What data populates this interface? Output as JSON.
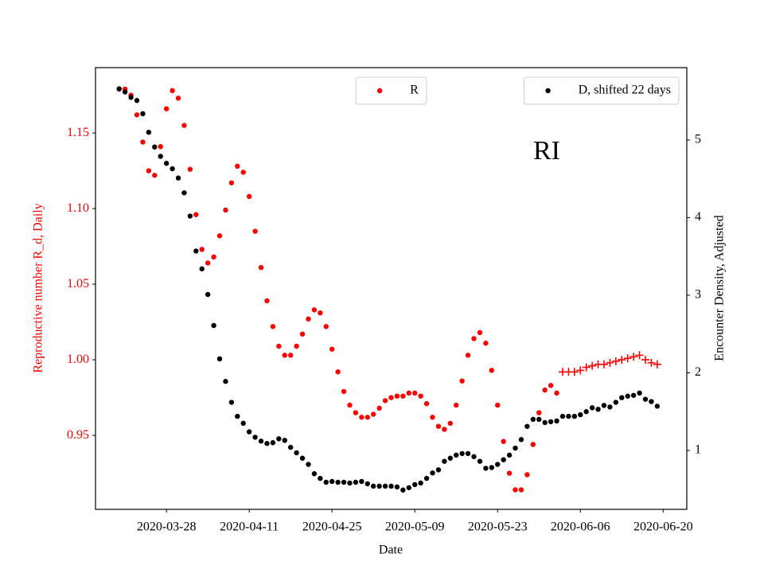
{
  "chart_data": {
    "type": "scatter",
    "annotation": "RI",
    "xlabel": "Date",
    "ylabel": "Reproductive number R_d, Daily",
    "y2label": "Encounter Density, Adjusted",
    "ylabel_color": "#ff0000",
    "xlim": [
      "2020-03-16",
      "2020-06-24"
    ],
    "xticks": [
      "2020-03-28",
      "2020-04-11",
      "2020-04-25",
      "2020-05-09",
      "2020-05-23",
      "2020-06-06",
      "2020-06-20"
    ],
    "ylim": [
      0.9011,
      1.1932
    ],
    "yticks": [
      0.95,
      {
        "value": 1,
        "label": "1.00"
      },
      1.05,
      {
        "value": 1.1,
        "label": "1.10"
      },
      1.15
    ],
    "y2lim": [
      0.241,
      5.933
    ],
    "y2ticks": [
      1,
      2,
      3,
      4,
      5
    ],
    "x": [
      "2020-03-20",
      "2020-03-21",
      "2020-03-22",
      "2020-03-23",
      "2020-03-24",
      "2020-03-25",
      "2020-03-26",
      "2020-03-27",
      "2020-03-28",
      "2020-03-29",
      "2020-03-30",
      "2020-03-31",
      "2020-04-01",
      "2020-04-02",
      "2020-04-03",
      "2020-04-04",
      "2020-04-05",
      "2020-04-06",
      "2020-04-07",
      "2020-04-08",
      "2020-04-09",
      "2020-04-10",
      "2020-04-11",
      "2020-04-12",
      "2020-04-13",
      "2020-04-14",
      "2020-04-15",
      "2020-04-16",
      "2020-04-17",
      "2020-04-18",
      "2020-04-19",
      "2020-04-20",
      "2020-04-21",
      "2020-04-22",
      "2020-04-23",
      "2020-04-24",
      "2020-04-25",
      "2020-04-26",
      "2020-04-27",
      "2020-04-28",
      "2020-04-29",
      "2020-04-30",
      "2020-05-01",
      "2020-05-02",
      "2020-05-03",
      "2020-05-04",
      "2020-05-05",
      "2020-05-06",
      "2020-05-07",
      "2020-05-08",
      "2020-05-09",
      "2020-05-10",
      "2020-05-11",
      "2020-05-12",
      "2020-05-13",
      "2020-05-14",
      "2020-05-15",
      "2020-05-16",
      "2020-05-17",
      "2020-05-18",
      "2020-05-19",
      "2020-05-20",
      "2020-05-21",
      "2020-05-22",
      "2020-05-23",
      "2020-05-24",
      "2020-05-25",
      "2020-05-26",
      "2020-05-27",
      "2020-05-28",
      "2020-05-29",
      "2020-05-30",
      "2020-05-31",
      "2020-06-01",
      "2020-06-02",
      "2020-06-03",
      "2020-06-04",
      "2020-06-05",
      "2020-06-06",
      "2020-06-07",
      "2020-06-08",
      "2020-06-09",
      "2020-06-10",
      "2020-06-11",
      "2020-06-12",
      "2020-06-13",
      "2020-06-14",
      "2020-06-15",
      "2020-06-16",
      "2020-06-17",
      "2020-06-18",
      "2020-06-19"
    ],
    "series": [
      {
        "name": "R",
        "color": "#ff0000",
        "marker": "dot",
        "axis": "y",
        "legend": "upper center",
        "values": [
          1.179,
          1.179,
          1.175,
          1.162,
          1.144,
          1.125,
          1.122,
          1.141,
          1.166,
          1.178,
          1.173,
          1.155,
          1.126,
          1.096,
          1.073,
          1.064,
          1.068,
          1.082,
          1.099,
          1.117,
          1.128,
          1.124,
          1.108,
          1.085,
          1.061,
          1.039,
          1.022,
          1.009,
          1.003,
          1.003,
          1.009,
          1.017,
          1.027,
          1.033,
          1.031,
          1.022,
          1.007,
          0.992,
          0.979,
          0.97,
          0.965,
          0.962,
          0.962,
          0.964,
          0.968,
          0.973,
          0.975,
          0.976,
          0.976,
          0.978,
          0.978,
          0.976,
          0.971,
          0.962,
          0.956,
          0.954,
          0.958,
          0.97,
          0.986,
          1.003,
          1.014,
          1.018,
          1.011,
          0.993,
          0.97,
          0.946,
          0.925,
          0.914,
          0.914,
          0.924,
          0.944,
          0.965,
          0.98,
          0.983,
          0.978,
          null,
          null,
          null,
          null,
          null,
          null,
          null,
          null,
          null,
          null,
          null,
          null,
          null,
          null,
          null,
          null,
          null
        ]
      },
      {
        "color": "#ff0000",
        "marker": "plus",
        "axis": "y",
        "values": [
          null,
          null,
          null,
          null,
          null,
          null,
          null,
          null,
          null,
          null,
          null,
          null,
          null,
          null,
          null,
          null,
          null,
          null,
          null,
          null,
          null,
          null,
          null,
          null,
          null,
          null,
          null,
          null,
          null,
          null,
          null,
          null,
          null,
          null,
          null,
          null,
          null,
          null,
          null,
          null,
          null,
          null,
          null,
          null,
          null,
          null,
          null,
          null,
          null,
          null,
          null,
          null,
          null,
          null,
          null,
          null,
          null,
          null,
          null,
          null,
          null,
          null,
          null,
          null,
          null,
          null,
          null,
          null,
          null,
          null,
          null,
          null,
          null,
          null,
          null,
          0.992,
          0.992,
          0.992,
          0.993,
          0.995,
          0.996,
          0.997,
          0.997,
          0.998,
          0.999,
          1.0,
          1.001,
          1.002,
          1.003,
          1.0,
          0.998,
          0.997
        ]
      },
      {
        "name": "D, shifted 22 days",
        "color": "#000000",
        "marker": "dot",
        "axis": "y2",
        "legend": "upper right",
        "values": [
          5.66,
          5.62,
          5.55,
          5.51,
          5.34,
          5.1,
          4.91,
          4.79,
          4.7,
          4.63,
          4.51,
          4.32,
          4.02,
          3.57,
          3.34,
          3.01,
          2.61,
          2.18,
          1.89,
          1.62,
          1.44,
          1.35,
          1.24,
          1.17,
          1.12,
          1.09,
          1.1,
          1.15,
          1.13,
          1.04,
          0.97,
          0.9,
          0.82,
          0.7,
          0.64,
          0.59,
          0.6,
          0.59,
          0.59,
          0.58,
          0.59,
          0.6,
          0.57,
          0.54,
          0.54,
          0.54,
          0.54,
          0.53,
          0.49,
          0.52,
          0.56,
          0.58,
          0.64,
          0.71,
          0.75,
          0.86,
          0.9,
          0.94,
          0.96,
          0.96,
          0.92,
          0.86,
          0.77,
          0.78,
          0.82,
          0.88,
          0.94,
          1.03,
          1.14,
          1.31,
          1.4,
          1.4,
          1.36,
          1.37,
          1.38,
          1.44,
          1.44,
          1.44,
          1.46,
          1.5,
          1.55,
          1.53,
          1.58,
          1.56,
          1.62,
          1.68,
          1.7,
          1.71,
          1.74,
          1.66,
          1.63,
          1.57
        ]
      }
    ]
  }
}
